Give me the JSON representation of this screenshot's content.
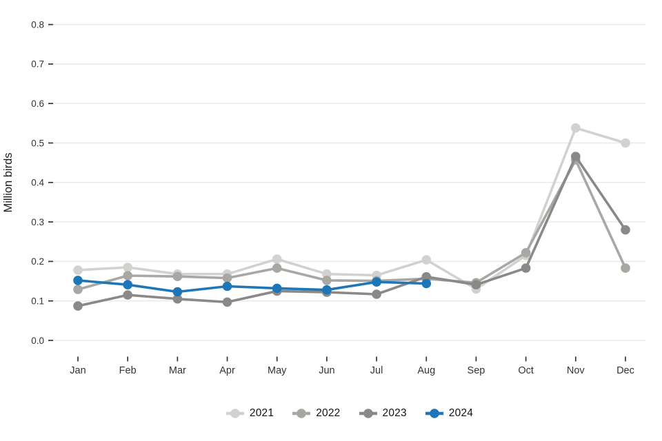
{
  "chart_data": {
    "type": "line",
    "title": "",
    "ylabel": "Million birds",
    "xlabel": "",
    "categories": [
      "Jan",
      "Feb",
      "Mar",
      "Apr",
      "May",
      "Jun",
      "Jul",
      "Aug",
      "Sep",
      "Oct",
      "Nov",
      "Dec"
    ],
    "ylim": [
      0,
      0.8
    ],
    "yticks": [
      0,
      0.1,
      0.2,
      0.3,
      0.4,
      0.5,
      0.6,
      0.7,
      0.8
    ],
    "ytick_labels": [
      "0.0",
      "0.1",
      "0.2",
      "0.3",
      "0.4",
      "0.5",
      "0.6",
      "0.7",
      "0.8"
    ],
    "grid": "horizontal-only",
    "legend_position": "bottom",
    "background_color": "#ffffff",
    "gridline_color": "#e8e8e8",
    "tick_color": "#333333",
    "axis_text_color": "#333333",
    "axis_title_color": "#1a1a1a",
    "series": [
      {
        "name": "2021",
        "color": "#d3d1cf",
        "values": [
          0.178,
          0.185,
          0.168,
          0.168,
          0.206,
          0.168,
          0.165,
          0.204,
          0.13,
          0.215,
          0.538,
          0.5
        ]
      },
      {
        "name": "2022",
        "color": "#a9a7a4",
        "values": [
          0.129,
          0.164,
          0.162,
          0.158,
          0.183,
          0.152,
          0.151,
          0.156,
          0.146,
          0.222,
          0.457,
          0.183
        ]
      },
      {
        "name": "2023",
        "color": "#8b8987",
        "values": [
          0.087,
          0.115,
          0.105,
          0.097,
          0.125,
          0.122,
          0.117,
          0.161,
          0.141,
          0.183,
          0.466,
          0.28
        ]
      },
      {
        "name": "2024",
        "color": "#1d76b8",
        "values": [
          0.152,
          0.141,
          0.123,
          0.137,
          0.132,
          0.128,
          0.148,
          0.144,
          null,
          null,
          null,
          null
        ]
      }
    ]
  }
}
